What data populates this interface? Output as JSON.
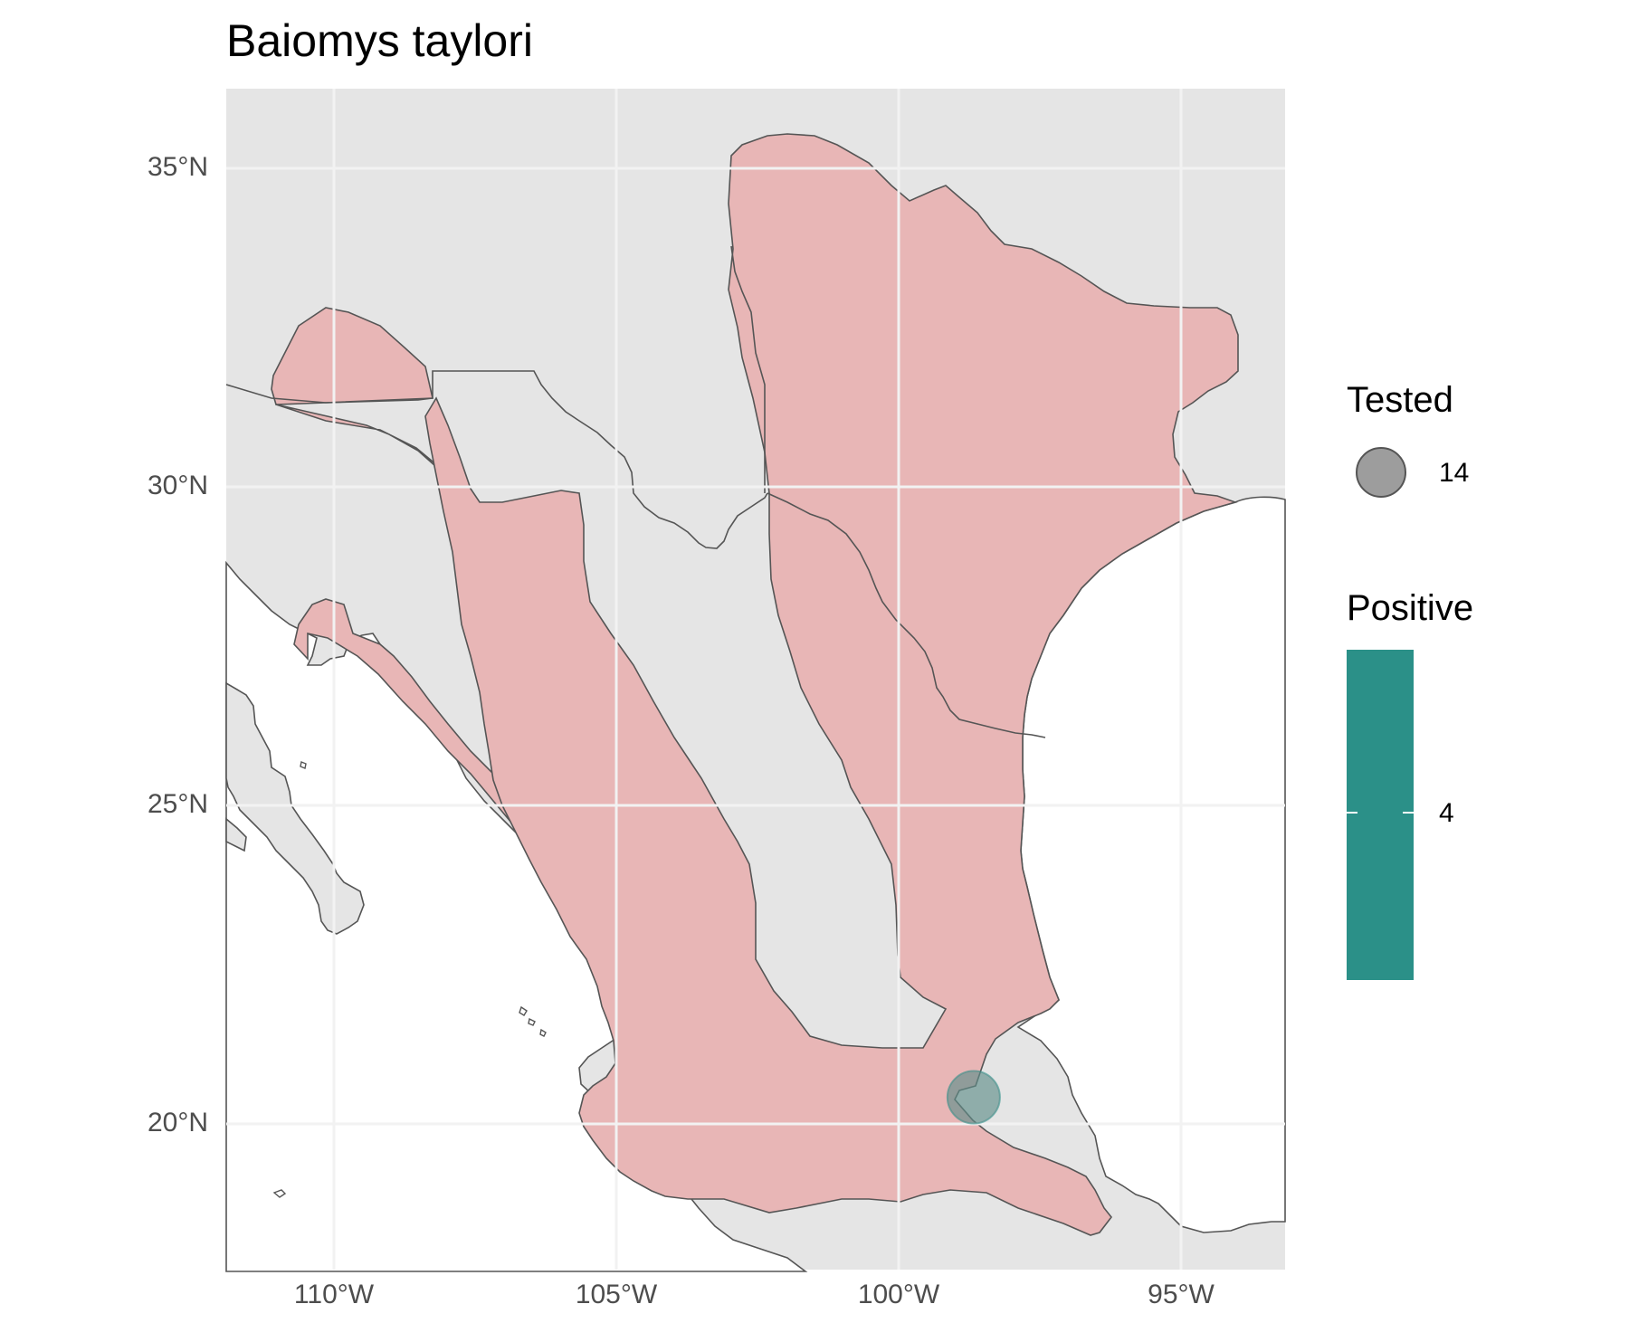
{
  "title": "Baiomys taylori",
  "axes": {
    "x_ticks": [
      "110°W",
      "105°W",
      "100°W",
      "95°W"
    ],
    "y_ticks": [
      "35°N",
      "30°N",
      "25°N",
      "20°N"
    ]
  },
  "map_data": {
    "lon_range": [
      -112.0,
      -93.3
    ],
    "lat_range": [
      17.8,
      36.3
    ],
    "background": "#e5e5e5",
    "range_fill": "#e8b6b6",
    "border_color": "#555555",
    "ocean": "#ffffff",
    "sample_points": [
      {
        "lon": -98.8,
        "lat": 20.5,
        "tested": 14,
        "positive": 4
      }
    ]
  },
  "legend": {
    "tested": {
      "title": "Tested",
      "value_label": "14",
      "color": "#8c8c8c"
    },
    "positive": {
      "title": "Positive",
      "value_label": "4",
      "color": "#2b9088"
    }
  }
}
